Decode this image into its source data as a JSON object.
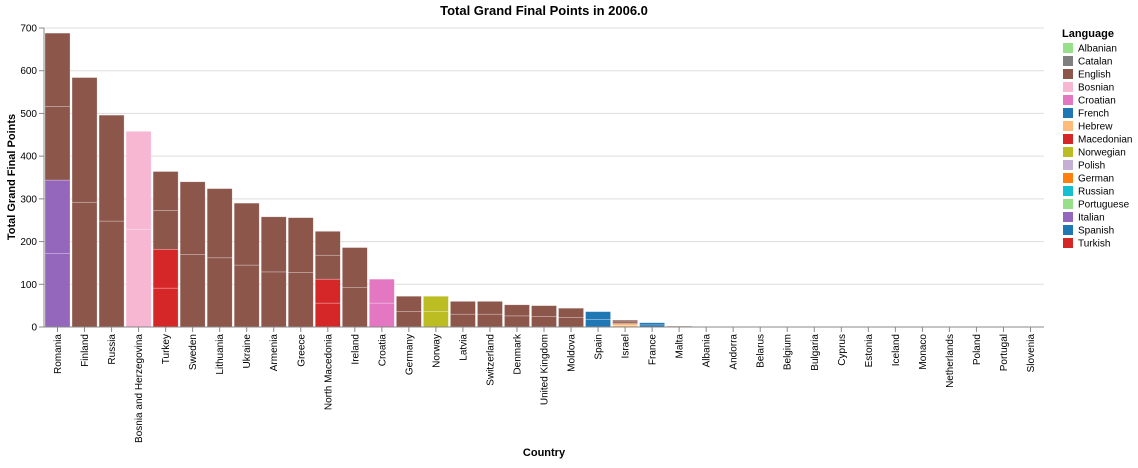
{
  "chart_data": {
    "type": "bar",
    "title": "Total Grand Final Points in 2006.0",
    "xlabel": "Country",
    "ylabel": "Total Grand Final Points",
    "ylim": [
      0,
      700
    ],
    "yticks": [
      0,
      100,
      200,
      300,
      400,
      500,
      600,
      700
    ],
    "grid": true,
    "legend": {
      "title": "Language",
      "placement": "right",
      "entries": [
        {
          "label": "Albanian",
          "color": "#98df8a"
        },
        {
          "label": "Catalan",
          "color": "#7f7f7f"
        },
        {
          "label": "English",
          "color": "#8c564b"
        },
        {
          "label": "Bosnian",
          "color": "#f7b6d2"
        },
        {
          "label": "Croatian",
          "color": "#e377c2"
        },
        {
          "label": "French",
          "color": "#1f77b4"
        },
        {
          "label": "Hebrew",
          "color": "#ffbb78"
        },
        {
          "label": "Macedonian",
          "color": "#d62728"
        },
        {
          "label": "Norwegian",
          "color": "#bcbd22"
        },
        {
          "label": "Polish",
          "color": "#c5b0d5"
        },
        {
          "label": "German",
          "color": "#ff7f0e"
        },
        {
          "label": "Russian",
          "color": "#17becf"
        },
        {
          "label": "Portuguese",
          "color": "#98df8a"
        },
        {
          "label": "Italian",
          "color": "#9467bd"
        },
        {
          "label": "Spanish",
          "color": "#1f77b4"
        },
        {
          "label": "Turkish",
          "color": "#d62728"
        }
      ]
    },
    "categories": [
      "Romania",
      "Finland",
      "Russia",
      "Bosnia and Herzegovina",
      "Turkey",
      "Sweden",
      "Lithuania",
      "Ukraine",
      "Armenia",
      "Greece",
      "North Macedonia",
      "Ireland",
      "Croatia",
      "Germany",
      "Norway",
      "Latvia",
      "Switzerland",
      "Denmark",
      "United Kingdom",
      "Moldova",
      "Spain",
      "Israel",
      "France",
      "Malta",
      "Albania",
      "Andorra",
      "Belarus",
      "Belgium",
      "Bulgaria",
      "Cyprus",
      "Estonia",
      "Iceland",
      "Monaco",
      "Netherlands",
      "Poland",
      "Portugal",
      "Slovenia"
    ],
    "bars": [
      [
        {
          "language": "Italian",
          "value": 172
        },
        {
          "language": "Italian",
          "value": 172
        },
        {
          "language": "English",
          "value": 172
        },
        {
          "language": "English",
          "value": 172
        }
      ],
      [
        {
          "language": "English",
          "value": 292
        },
        {
          "language": "English",
          "value": 292
        }
      ],
      [
        {
          "language": "English",
          "value": 248
        },
        {
          "language": "English",
          "value": 248
        }
      ],
      [
        {
          "language": "Bosnian",
          "value": 229
        },
        {
          "language": "Bosnian",
          "value": 229
        }
      ],
      [
        {
          "language": "Turkish",
          "value": 91
        },
        {
          "language": "Turkish",
          "value": 91
        },
        {
          "language": "English",
          "value": 91
        },
        {
          "language": "English",
          "value": 91
        }
      ],
      [
        {
          "language": "English",
          "value": 170
        },
        {
          "language": "English",
          "value": 170
        }
      ],
      [
        {
          "language": "English",
          "value": 162
        },
        {
          "language": "English",
          "value": 162
        }
      ],
      [
        {
          "language": "English",
          "value": 145
        },
        {
          "language": "English",
          "value": 145
        }
      ],
      [
        {
          "language": "English",
          "value": 129
        },
        {
          "language": "English",
          "value": 129
        }
      ],
      [
        {
          "language": "English",
          "value": 128
        },
        {
          "language": "English",
          "value": 128
        }
      ],
      [
        {
          "language": "Macedonian",
          "value": 56
        },
        {
          "language": "Macedonian",
          "value": 56
        },
        {
          "language": "English",
          "value": 56
        },
        {
          "language": "English",
          "value": 56
        }
      ],
      [
        {
          "language": "English",
          "value": 93
        },
        {
          "language": "English",
          "value": 93
        }
      ],
      [
        {
          "language": "Croatian",
          "value": 56
        },
        {
          "language": "Croatian",
          "value": 56
        }
      ],
      [
        {
          "language": "English",
          "value": 36
        },
        {
          "language": "English",
          "value": 36
        }
      ],
      [
        {
          "language": "Norwegian",
          "value": 36
        },
        {
          "language": "Norwegian",
          "value": 36
        }
      ],
      [
        {
          "language": "English",
          "value": 30
        },
        {
          "language": "English",
          "value": 30
        }
      ],
      [
        {
          "language": "English",
          "value": 30
        },
        {
          "language": "English",
          "value": 30
        }
      ],
      [
        {
          "language": "English",
          "value": 26
        },
        {
          "language": "English",
          "value": 26
        }
      ],
      [
        {
          "language": "English",
          "value": 25
        },
        {
          "language": "English",
          "value": 25
        }
      ],
      [
        {
          "language": "English",
          "value": 22
        },
        {
          "language": "English",
          "value": 22
        }
      ],
      [
        {
          "language": "Spanish",
          "value": 18
        },
        {
          "language": "Spanish",
          "value": 18
        }
      ],
      [
        {
          "language": "Hebrew",
          "value": 4
        },
        {
          "language": "Hebrew",
          "value": 4
        },
        {
          "language": "English",
          "value": 4
        },
        {
          "language": "English",
          "value": 4
        }
      ],
      [
        {
          "language": "French",
          "value": 5
        },
        {
          "language": "French",
          "value": 5
        }
      ],
      [
        {
          "language": "English",
          "value": 1
        },
        {
          "language": "English",
          "value": 1
        }
      ],
      [],
      [],
      [],
      [],
      [],
      [],
      [],
      [],
      [],
      [],
      [],
      [],
      []
    ]
  }
}
